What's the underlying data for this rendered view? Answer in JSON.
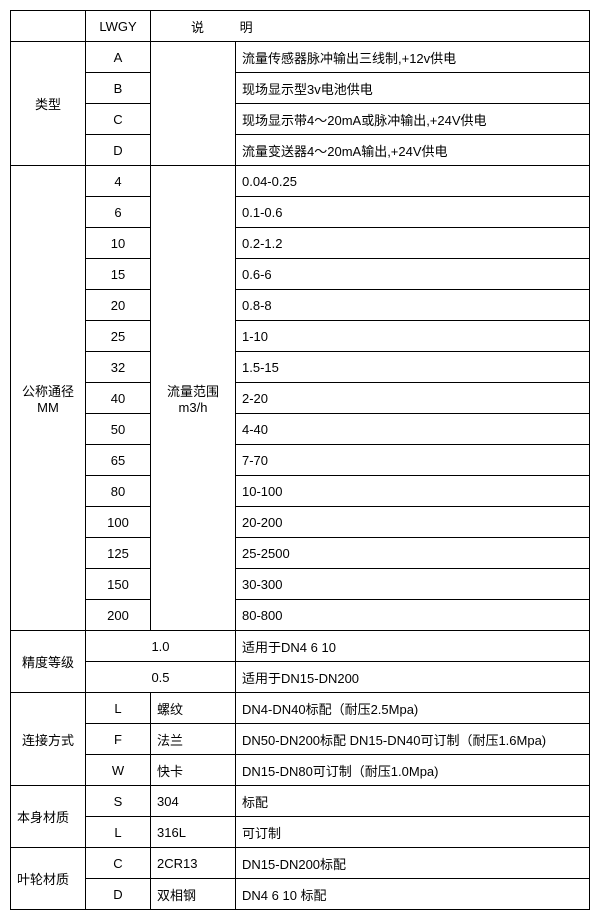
{
  "colors": {
    "border": "#000000",
    "text": "#000000",
    "background": "#ffffff"
  },
  "font": {
    "family": "Microsoft YaHei / SimSun",
    "size_pt": 10
  },
  "header": {
    "lwgy": "LWGY",
    "desc": "说 明"
  },
  "type": {
    "label": "类型",
    "rows": [
      {
        "code": "A",
        "desc": "流量传感器脉冲输出三线制,+12v供电"
      },
      {
        "code": "B",
        "desc": "现场显示型3v电池供电"
      },
      {
        "code": "C",
        "desc": "现场显示带4～20mA或脉冲输出,+24V供电"
      },
      {
        "code": "D",
        "desc": "流量变送器4～20mA输出,+24V供电"
      }
    ]
  },
  "diameter": {
    "label1": "公称通径",
    "label2": "MM",
    "range_label1": "流量范围",
    "range_label2": "m3/h",
    "rows": [
      {
        "dn": "4",
        "range": "0.04-0.25"
      },
      {
        "dn": "6",
        "range": "0.1-0.6"
      },
      {
        "dn": "10",
        "range": "0.2-1.2"
      },
      {
        "dn": "15",
        "range": "0.6-6"
      },
      {
        "dn": "20",
        "range": "0.8-8"
      },
      {
        "dn": "25",
        "range": "1-10"
      },
      {
        "dn": "32",
        "range": "1.5-15"
      },
      {
        "dn": "40",
        "range": "2-20"
      },
      {
        "dn": "50",
        "range": "4-40"
      },
      {
        "dn": "65",
        "range": "7-70"
      },
      {
        "dn": "80",
        "range": "10-100"
      },
      {
        "dn": "100",
        "range": "20-200"
      },
      {
        "dn": "125",
        "range": "25-2500"
      },
      {
        "dn": "150",
        "range": "30-300"
      },
      {
        "dn": "200",
        "range": "80-800"
      }
    ]
  },
  "accuracy": {
    "label": "精度等级",
    "rows": [
      {
        "val": "1.0",
        "desc": "适用于DN4  6  10"
      },
      {
        "val": "0.5",
        "desc": "适用于DN15-DN200"
      }
    ]
  },
  "connection": {
    "label": "连接方式",
    "rows": [
      {
        "code": "L",
        "name": "螺纹",
        "desc": "DN4-DN40标配（耐压2.5Mpa)"
      },
      {
        "code": "F",
        "name": "法兰",
        "desc": "DN50-DN200标配 DN15-DN40可订制（耐压1.6Mpa)"
      },
      {
        "code": "W",
        "name": "快卡",
        "desc": "DN15-DN80可订制（耐压1.0Mpa)"
      }
    ]
  },
  "body_material": {
    "label": "本身材质",
    "rows": [
      {
        "code": "S",
        "name": "304",
        "desc": "标配"
      },
      {
        "code": "L",
        "name": "316L",
        "desc": "可订制"
      }
    ]
  },
  "impeller_material": {
    "label": "叶轮材质",
    "rows": [
      {
        "code": "C",
        "name": "2CR13",
        "desc": "DN15-DN200标配"
      },
      {
        "code": "D",
        "name": "双相钢",
        "desc": "DN4 6 10 标配"
      }
    ]
  }
}
